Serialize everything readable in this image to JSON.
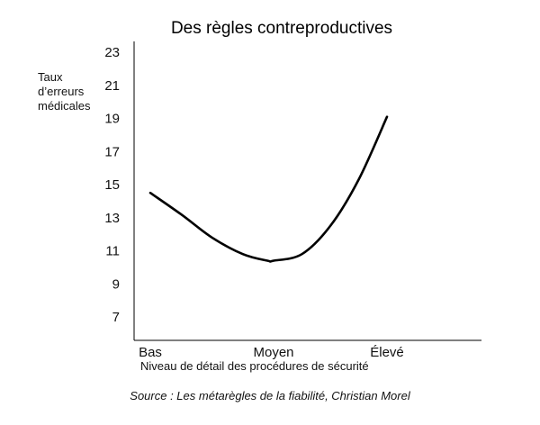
{
  "chart_data": {
    "type": "line",
    "title": "Des règles contreproductives",
    "ylabel_lines": [
      "Taux",
      "d’erreurs",
      "médicales"
    ],
    "xlabel": "Niveau de détail des procédures de sécurité",
    "categories": [
      "Bas",
      "Moyen",
      "Élevé"
    ],
    "yticks": [
      23,
      21,
      19,
      17,
      15,
      13,
      11,
      9,
      7
    ],
    "ylim": [
      5.5,
      24
    ],
    "grid": false,
    "series": [
      {
        "x": [
          0.0,
          0.25,
          0.5,
          0.75,
          0.95,
          1.0,
          1.25,
          1.5,
          1.75,
          2.0
        ],
        "y": [
          14.5,
          13.2,
          11.8,
          10.8,
          10.4,
          10.4,
          10.8,
          12.5,
          15.3,
          19.1
        ]
      }
    ],
    "source": "Source : Les métarègles de la fiabilité, Christian Morel"
  }
}
